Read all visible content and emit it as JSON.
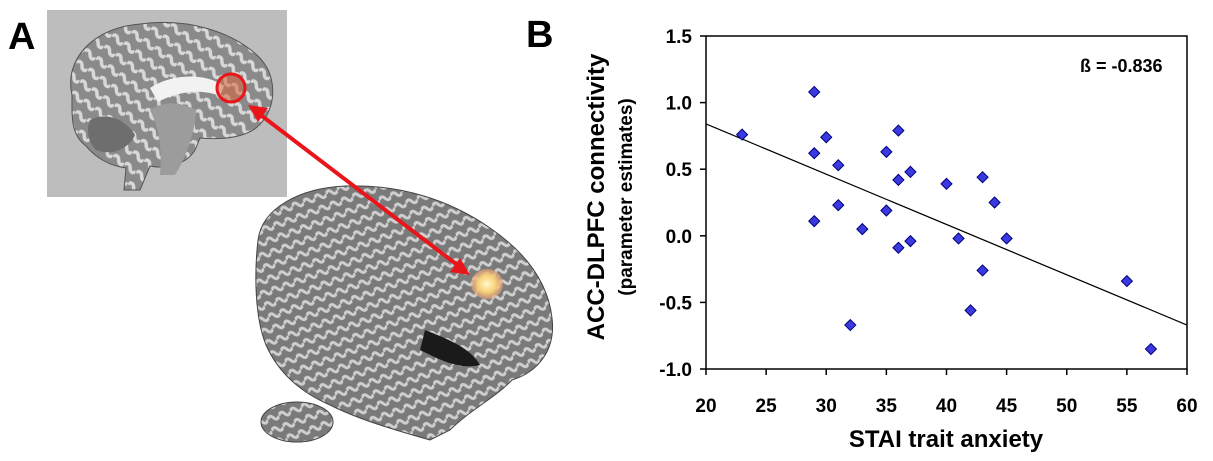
{
  "panels": {
    "a_label": "A",
    "b_label": "B"
  },
  "colors": {
    "point_fill": "#3a3ae0",
    "point_stroke": "#00007a",
    "arrow": "#e8151b",
    "roi": "#e8151b"
  },
  "chart_data": {
    "type": "scatter",
    "xlabel": "STAI trait anxiety",
    "ylabel": "ACC-DLPFC connectivity",
    "ylabel_sub": "(parameter estimates)",
    "annotation": "ß = -0.836",
    "xlim": [
      20,
      60
    ],
    "ylim": [
      -1.0,
      1.5
    ],
    "xticks": [
      20,
      25,
      30,
      35,
      40,
      45,
      50,
      55,
      60
    ],
    "yticks": [
      -1.0,
      -0.5,
      0.0,
      0.5,
      1.0,
      1.5
    ],
    "ytick_labels": [
      "-1.0",
      "-0.5",
      "0.0",
      "0.5",
      "1.0",
      "1.5"
    ],
    "grid": false,
    "points": [
      {
        "x": 23,
        "y": 0.76
      },
      {
        "x": 29,
        "y": 1.08
      },
      {
        "x": 29,
        "y": 0.62
      },
      {
        "x": 29,
        "y": 0.11
      },
      {
        "x": 30,
        "y": 0.74
      },
      {
        "x": 31,
        "y": 0.53
      },
      {
        "x": 31,
        "y": 0.23
      },
      {
        "x": 32,
        "y": -0.67
      },
      {
        "x": 33,
        "y": 0.05
      },
      {
        "x": 35,
        "y": 0.63
      },
      {
        "x": 35,
        "y": 0.19
      },
      {
        "x": 36,
        "y": 0.79
      },
      {
        "x": 36,
        "y": 0.42
      },
      {
        "x": 36,
        "y": -0.09
      },
      {
        "x": 37,
        "y": 0.48
      },
      {
        "x": 37,
        "y": -0.04
      },
      {
        "x": 40,
        "y": 0.39
      },
      {
        "x": 41,
        "y": -0.02
      },
      {
        "x": 42,
        "y": -0.56
      },
      {
        "x": 43,
        "y": 0.44
      },
      {
        "x": 43,
        "y": -0.26
      },
      {
        "x": 44,
        "y": 0.25
      },
      {
        "x": 45,
        "y": -0.02
      },
      {
        "x": 55,
        "y": -0.34
      },
      {
        "x": 57,
        "y": -0.85
      }
    ],
    "fit_line": {
      "x1": 20,
      "y1": 0.84,
      "x2": 60,
      "y2": -0.67
    }
  }
}
